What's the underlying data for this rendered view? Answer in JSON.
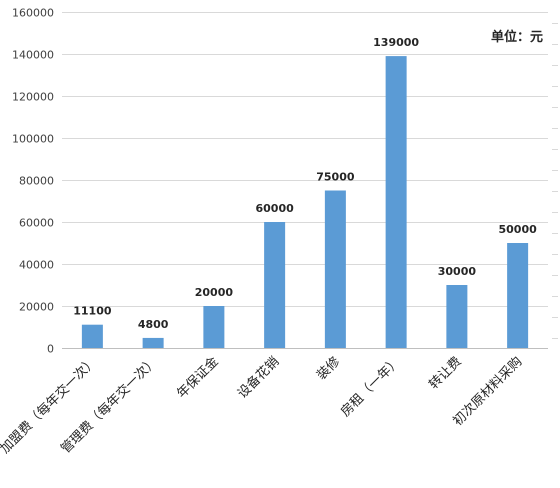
{
  "chart_data": {
    "type": "bar",
    "title": "",
    "xlabel": "",
    "ylabel": "",
    "unit_label": "单位：元",
    "categories": [
      "加盟费（每年交一次）",
      "管理费（每年交一次）",
      "年保证金",
      "设备花销",
      "装修",
      "房租（一年）",
      "转让费",
      "初次原材料采购"
    ],
    "values": [
      11100,
      4800,
      20000,
      60000,
      75000,
      139000,
      30000,
      50000
    ],
    "data_labels": [
      "11100",
      "4800",
      "20000",
      "60000",
      "75000",
      "139000",
      "30000",
      "50000"
    ],
    "ylim": [
      0,
      160000
    ],
    "yticks": [
      "0",
      "20000",
      "40000",
      "60000",
      "80000",
      "100000",
      "120000",
      "140000",
      "160000"
    ],
    "grid": true,
    "legend": "none",
    "bar_color": "#5b9bd5"
  }
}
